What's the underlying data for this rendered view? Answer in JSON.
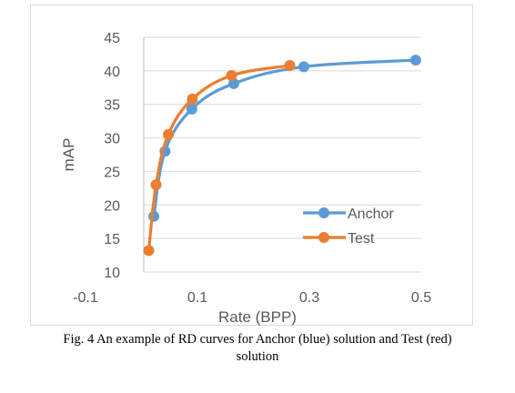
{
  "chart_data": {
    "type": "scatter",
    "xlabel": "Rate (BPP)",
    "ylabel": "mAP",
    "xlim": [
      -0.1,
      0.5
    ],
    "ylim": [
      10,
      45
    ],
    "x_ticks": [
      "-0.1",
      "0.1",
      "0.3",
      "0.5"
    ],
    "y_ticks": [
      "10",
      "15",
      "20",
      "25",
      "30",
      "35",
      "40",
      "45"
    ],
    "grid": true,
    "legend_position": "right",
    "series": [
      {
        "name": "Anchor",
        "color": "#5b9bd5",
        "points": [
          {
            "x": 0.022,
            "y": 18.3
          },
          {
            "x": 0.042,
            "y": 28.0
          },
          {
            "x": 0.09,
            "y": 34.3
          },
          {
            "x": 0.165,
            "y": 38.1
          },
          {
            "x": 0.29,
            "y": 40.6
          },
          {
            "x": 0.49,
            "y": 41.6
          }
        ]
      },
      {
        "name": "Test",
        "color": "#ed7d31",
        "points": [
          {
            "x": 0.013,
            "y": 13.2
          },
          {
            "x": 0.026,
            "y": 23.0
          },
          {
            "x": 0.048,
            "y": 30.5
          },
          {
            "x": 0.091,
            "y": 35.8
          },
          {
            "x": 0.161,
            "y": 39.3
          },
          {
            "x": 0.265,
            "y": 40.8
          }
        ]
      }
    ]
  },
  "caption": {
    "line1": "Fig. 4 An example of RD curves for Anchor (blue) solution and Test (red)",
    "line2": "solution"
  }
}
